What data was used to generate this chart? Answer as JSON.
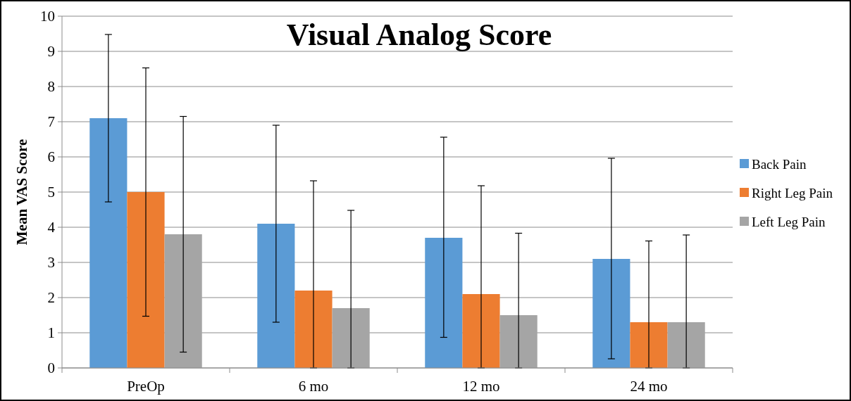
{
  "chart_data": {
    "type": "bar",
    "title": "Visual Analog Score",
    "ylabel": "Mean VAS Score",
    "categories": [
      "PreOp",
      "6 mo",
      "12 mo",
      "24 mo"
    ],
    "series": [
      {
        "name": "Back Pain",
        "color": "#5b9bd5",
        "values": [
          7.1,
          4.1,
          3.7,
          3.1
        ],
        "errors": [
          [
            4.72,
            9.48
          ],
          [
            1.3,
            6.9
          ],
          [
            0.87,
            6.56
          ],
          [
            0.26,
            5.96
          ]
        ]
      },
      {
        "name": "Right Leg Pain",
        "color": "#ed7d31",
        "values": [
          5.0,
          2.2,
          2.1,
          1.3
        ],
        "errors": [
          [
            1.47,
            8.53
          ],
          [
            0,
            5.32
          ],
          [
            0,
            5.18
          ],
          [
            0,
            3.61
          ]
        ]
      },
      {
        "name": "Left Leg Pain",
        "color": "#a5a5a5",
        "values": [
          3.8,
          1.7,
          1.5,
          1.3
        ],
        "errors": [
          [
            0.45,
            7.15
          ],
          [
            0,
            4.48
          ],
          [
            0,
            3.83
          ],
          [
            0,
            3.78
          ]
        ]
      }
    ],
    "ylim": [
      0,
      10
    ],
    "yticks": [
      0,
      1,
      2,
      3,
      4,
      5,
      6,
      7,
      8,
      9,
      10
    ],
    "grid": "y",
    "legend": "right"
  }
}
